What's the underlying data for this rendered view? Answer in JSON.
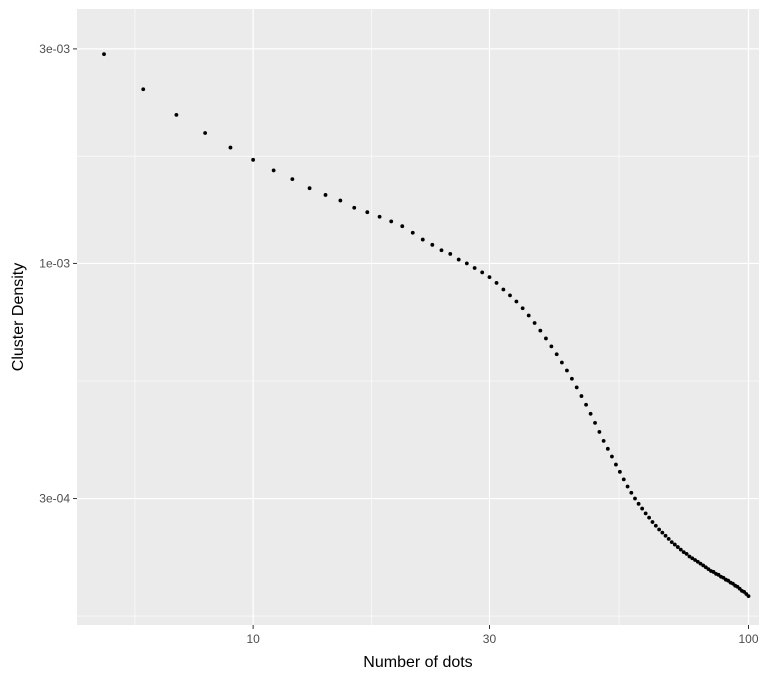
{
  "chart_data": {
    "type": "scatter",
    "title": "",
    "xlabel": "Number of dots",
    "ylabel": "Cluster Density",
    "x_scale": "log10",
    "y_scale": "log10",
    "xlim": [
      4.41,
      105
    ],
    "ylim": [
      0.000157,
      0.00368
    ],
    "x_ticks": [
      10,
      30,
      100
    ],
    "x_tick_labels": [
      "10",
      "30",
      "100"
    ],
    "y_ticks": [
      0.0003,
      0.001,
      0.003
    ],
    "y_tick_labels": [
      "3e-04",
      "1e-03",
      "3e-03"
    ],
    "grid": true,
    "legend": "none",
    "background": "#ebebeb",
    "grid_color": "#ffffff",
    "point_color": "#000000",
    "x": [
      5,
      6,
      7,
      8,
      9,
      10,
      11,
      12,
      13,
      14,
      15,
      16,
      17,
      18,
      19,
      20,
      21,
      22,
      23,
      24,
      25,
      26,
      27,
      28,
      29,
      30,
      31,
      32,
      33,
      34,
      35,
      36,
      37,
      38,
      39,
      40,
      41,
      42,
      43,
      44,
      45,
      46,
      47,
      48,
      49,
      50,
      51,
      52,
      53,
      54,
      55,
      56,
      57,
      58,
      59,
      60,
      61,
      62,
      63,
      64,
      65,
      66,
      67,
      68,
      69,
      70,
      71,
      72,
      73,
      74,
      75,
      76,
      77,
      78,
      79,
      80,
      81,
      82,
      83,
      84,
      85,
      86,
      87,
      88,
      89,
      90,
      91,
      92,
      93,
      94,
      95,
      96,
      97,
      98,
      99,
      100
    ],
    "y": [
      0.00292,
      0.00244,
      0.00214,
      0.00195,
      0.00181,
      0.0017,
      0.00161,
      0.00154,
      0.00147,
      0.00142,
      0.00138,
      0.00133,
      0.0013,
      0.00127,
      0.00124,
      0.00121,
      0.00117,
      0.00113,
      0.0011,
      0.00107,
      0.00105,
      0.00102,
      0.001,
      0.000977,
      0.000955,
      0.000932,
      0.000905,
      0.000875,
      0.000849,
      0.000823,
      0.000795,
      0.000766,
      0.000737,
      0.000709,
      0.000681,
      0.000654,
      0.000628,
      0.000602,
      0.000578,
      0.000554,
      0.00053,
      0.000507,
      0.000485,
      0.000463,
      0.000442,
      0.000422,
      0.000403,
      0.000387,
      0.000372,
      0.000357,
      0.000344,
      0.000331,
      0.000319,
      0.000309,
      0.0003,
      0.000292,
      0.000285,
      0.000278,
      0.000272,
      0.000266,
      0.000261,
      0.000256,
      0.000252,
      0.000248,
      0.000244,
      0.00024,
      0.000237,
      0.000234,
      0.000231,
      0.000228,
      0.000226,
      0.000223,
      0.000221,
      0.000219,
      0.000217,
      0.000215,
      0.000213,
      0.000211,
      0.000209,
      0.000207,
      0.000206,
      0.000204,
      0.000203,
      0.000201,
      0.0002,
      0.000198,
      0.000197,
      0.000195,
      0.000194,
      0.000192,
      0.000191,
      0.000189,
      0.000187,
      0.000186,
      0.000184,
      0.000182
    ]
  }
}
